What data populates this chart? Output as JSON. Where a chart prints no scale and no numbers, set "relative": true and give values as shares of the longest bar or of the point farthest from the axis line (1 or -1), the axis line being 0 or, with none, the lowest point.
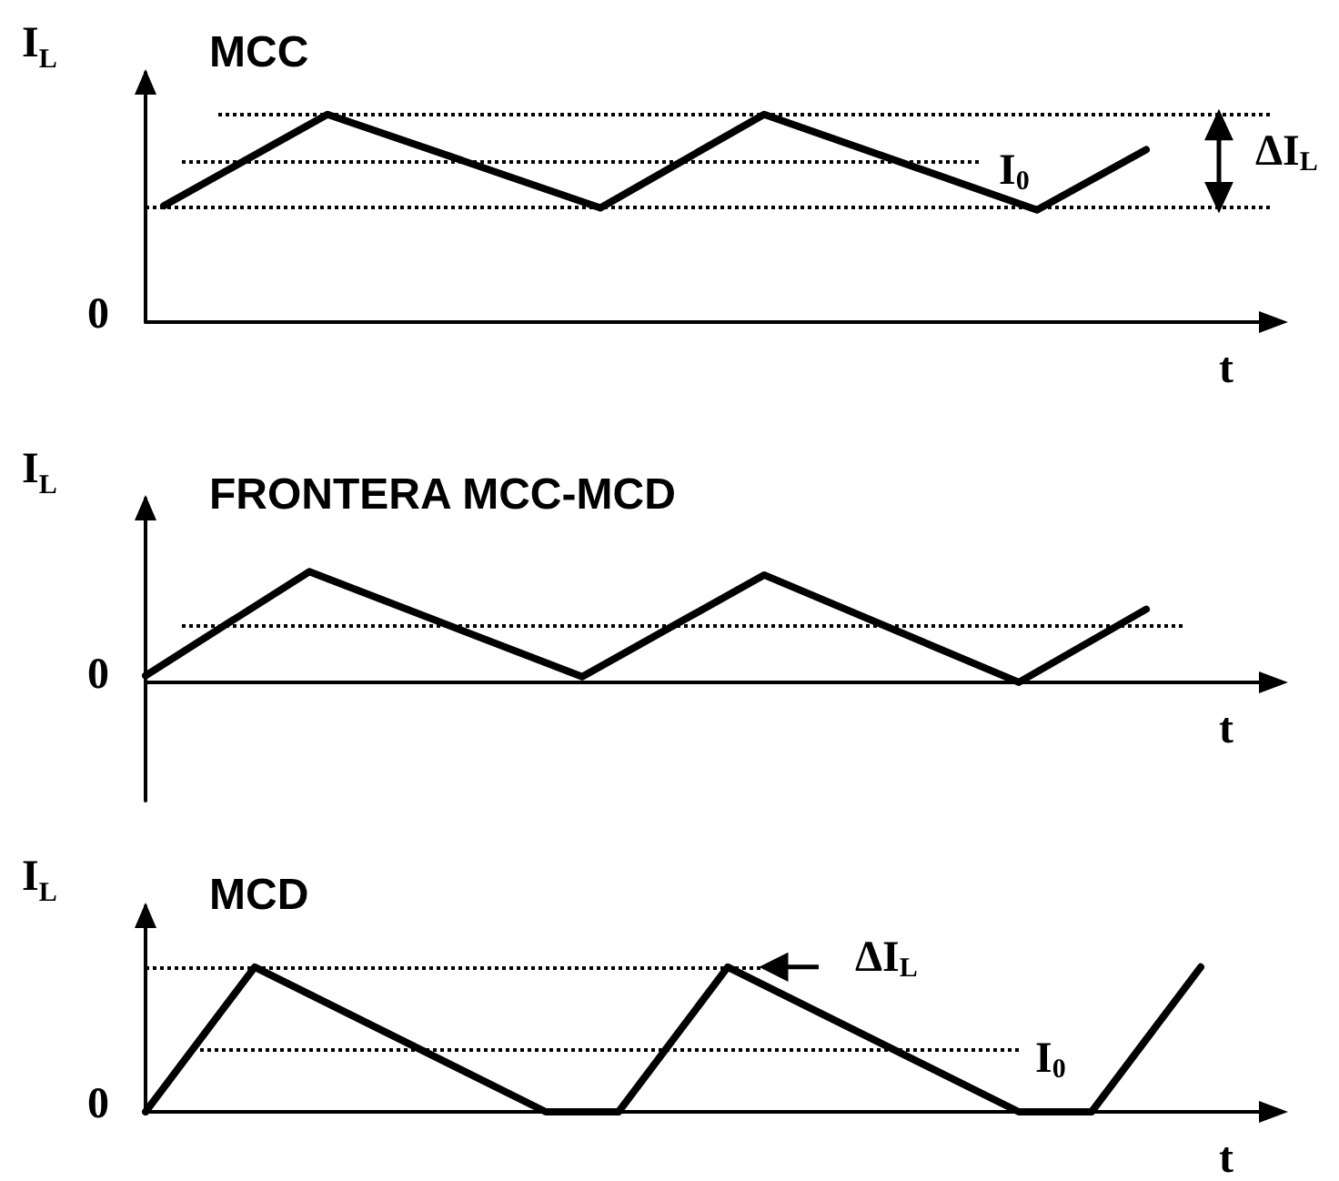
{
  "chart_data": [
    {
      "type": "line",
      "title": "MCC",
      "xlabel": "t",
      "ylabel": "I$_{L}$",
      "relative": true,
      "tick_labels": false,
      "grid": false,
      "marker": "none",
      "line_style": "solid",
      "categories": [
        null,
        null,
        null,
        null,
        null,
        null,
        null,
        null,
        null,
        null,
        null,
        null,
        null,
        null,
        null,
        null,
        null,
        null,
        null,
        null,
        null,
        null,
        null,
        null,
        null,
        null,
        null,
        null,
        null,
        null,
        null,
        null,
        null,
        null,
        null,
        null,
        null,
        null,
        null,
        null,
        null,
        null,
        null,
        null,
        null,
        null,
        null,
        null,
        null,
        null,
        null,
        null,
        null,
        null,
        null,
        null,
        null,
        null,
        null,
        null,
        null,
        null,
        null
      ],
      "series": [
        {
          "color": "#000000",
          "values": [
            null,
            0.56,
            null,
            null,
            null,
            null,
            null,
            null,
            null,
            null,
            1,
            null,
            null,
            null,
            null,
            null,
            null,
            null,
            null,
            null,
            null,
            null,
            null,
            null,
            null,
            0.55,
            null,
            null,
            null,
            null,
            null,
            null,
            null,
            null,
            1,
            null,
            null,
            null,
            null,
            null,
            null,
            null,
            null,
            null,
            null,
            null,
            null,
            null,
            null,
            0.54,
            null,
            null,
            null,
            null,
            null,
            0.83,
            null,
            null,
            null,
            null,
            null,
            null,
            null
          ]
        }
      ],
      "ref_lines": [
        {
          "axis": "y",
          "value": 1,
          "line_style": "dotted",
          "color": "#000000"
        },
        {
          "axis": "y",
          "value": 0.77,
          "label": "I$_{0}$",
          "line_style": "dotted",
          "color": "#000000"
        },
        {
          "axis": "y",
          "value": 0.55,
          "line_style": "dotted",
          "color": "#000000"
        }
      ],
      "annotations": [
        "0",
        "ΔI$_{L}$"
      ]
    },
    {
      "type": "line",
      "title": "FRONTERA MCC-MCD",
      "xlabel": "t",
      "ylabel": "I$_{L}$",
      "relative": true,
      "tick_labels": false,
      "grid": false,
      "marker": "none",
      "line_style": "solid",
      "categories": [
        null,
        null,
        null,
        null,
        null,
        null,
        null,
        null,
        null,
        null,
        null,
        null,
        null,
        null,
        null,
        null,
        null,
        null,
        null,
        null,
        null,
        null,
        null,
        null,
        null,
        null,
        null,
        null,
        null,
        null,
        null,
        null,
        null,
        null,
        null,
        null,
        null,
        null,
        null,
        null,
        null,
        null,
        null,
        null,
        null,
        null,
        null,
        null,
        null,
        null,
        null,
        null,
        null,
        null,
        null,
        null,
        null,
        null,
        null,
        null,
        null,
        null,
        null
      ],
      "series": [
        {
          "color": "#000000",
          "values": [
            0.06,
            null,
            null,
            null,
            null,
            null,
            null,
            null,
            null,
            1,
            null,
            null,
            null,
            null,
            null,
            null,
            null,
            null,
            null,
            null,
            null,
            null,
            null,
            null,
            0.05,
            null,
            null,
            null,
            null,
            null,
            null,
            null,
            null,
            null,
            0.97,
            null,
            null,
            null,
            null,
            null,
            null,
            null,
            null,
            null,
            null,
            null,
            null,
            null,
            0,
            null,
            null,
            null,
            null,
            null,
            null,
            0.66,
            null,
            null,
            null,
            null,
            null,
            null,
            null
          ]
        }
      ],
      "ref_lines": [
        {
          "axis": "y",
          "value": 0.52,
          "line_style": "dotted",
          "color": "#000000"
        }
      ],
      "annotations": [
        "0"
      ]
    },
    {
      "type": "line",
      "title": "MCD",
      "xlabel": "t",
      "ylabel": "I$_{L}$",
      "relative": true,
      "tick_labels": false,
      "grid": false,
      "marker": "none",
      "line_style": "solid",
      "categories": [
        null,
        null,
        null,
        null,
        null,
        null,
        null,
        null,
        null,
        null,
        null,
        null,
        null,
        null,
        null,
        null,
        null,
        null,
        null,
        null,
        null,
        null,
        null,
        null,
        null,
        null,
        null,
        null,
        null,
        null,
        null,
        null,
        null,
        null,
        null,
        null,
        null,
        null,
        null,
        null,
        null,
        null,
        null,
        null,
        null,
        null,
        null,
        null,
        null,
        null,
        null,
        null,
        null,
        null,
        null,
        null,
        null,
        null,
        null,
        null,
        null,
        null,
        null
      ],
      "series": [
        {
          "color": "#000000",
          "values": [
            0,
            null,
            null,
            null,
            null,
            null,
            1,
            null,
            null,
            null,
            null,
            null,
            null,
            null,
            null,
            null,
            null,
            null,
            null,
            null,
            null,
            null,
            0,
            null,
            null,
            null,
            0,
            null,
            null,
            null,
            null,
            null,
            1,
            null,
            null,
            null,
            null,
            null,
            null,
            null,
            null,
            null,
            null,
            null,
            null,
            null,
            null,
            null,
            0,
            null,
            null,
            null,
            0,
            null,
            null,
            null,
            null,
            null,
            1,
            null,
            null,
            null,
            null
          ]
        }
      ],
      "ref_lines": [
        {
          "axis": "y",
          "value": 1,
          "line_style": "dotted",
          "color": "#000000"
        },
        {
          "axis": "y",
          "value": 0.43,
          "label": "I$_{0}$",
          "line_style": "dotted",
          "color": "#000000"
        }
      ],
      "annotations": [
        "0",
        "ΔI$_{L}$"
      ]
    }
  ]
}
